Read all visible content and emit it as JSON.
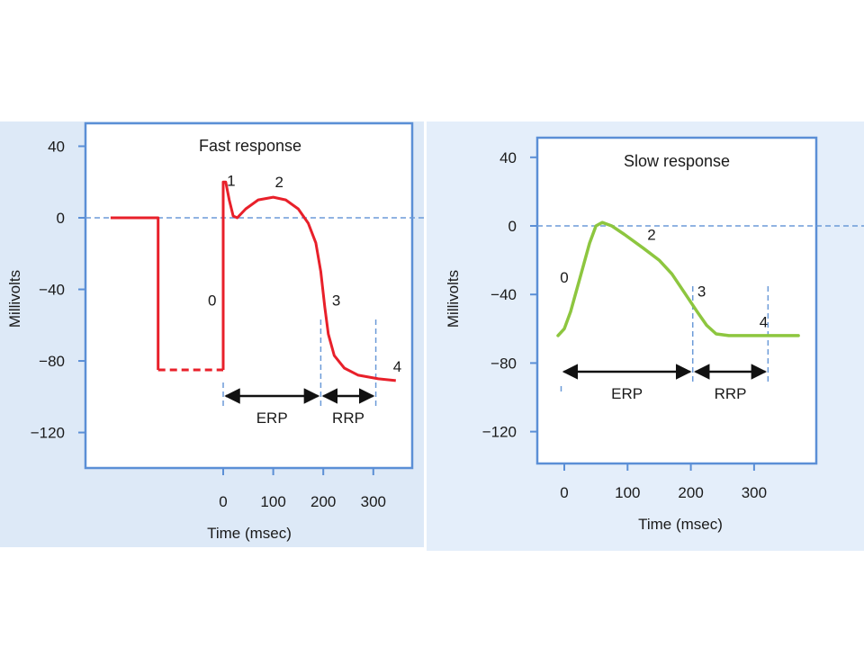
{
  "colors": {
    "fast_curve": "#e8202a",
    "slow_curve": "#8dc63f",
    "frame": "#5b8fd6",
    "guide": "#6b9ad8",
    "arrow": "#111111"
  },
  "chart_data": [
    {
      "type": "line",
      "title": "Fast response",
      "xlabel": "Time (msec)",
      "ylabel": "Millivolts",
      "xlim": [
        -230,
        380
      ],
      "ylim": [
        -140,
        48
      ],
      "x_ticks": [
        "0",
        "100",
        "200",
        "300"
      ],
      "y_ticks": [
        "40",
        "0",
        "−40",
        "−80",
        "−120"
      ],
      "x_tick_values": [
        0,
        100,
        200,
        300
      ],
      "y_tick_values": [
        40,
        0,
        -40,
        -80,
        -120
      ],
      "resting_dashed_y": 0,
      "series": [
        {
          "points": [
            [
              -225,
              0
            ],
            [
              -130,
              0
            ],
            [
              -130,
              -85
            ],
            [
              -130,
              -85
            ]
          ],
          "dashed_segment": [
            [
              -130,
              -85
            ],
            [
              0,
              -85
            ]
          ],
          "upstroke": [
            [
              0,
              -85
            ],
            [
              0,
              20
            ],
            [
              5,
              20
            ],
            [
              12,
              10
            ],
            [
              20,
              1
            ],
            [
              28,
              0
            ],
            [
              45,
              5
            ],
            [
              70,
              10
            ],
            [
              100,
              11.5
            ],
            [
              125,
              10
            ],
            [
              150,
              5
            ],
            [
              170,
              -3
            ],
            [
              185,
              -14
            ],
            [
              195,
              -30
            ],
            [
              203,
              -50
            ],
            [
              210,
              -65
            ],
            [
              222,
              -77
            ],
            [
              242,
              -84
            ],
            [
              270,
              -88
            ],
            [
              310,
              -90
            ],
            [
              345,
              -91
            ]
          ]
        }
      ],
      "phase_labels": [
        {
          "text": "0",
          "x": -22,
          "y": -46
        },
        {
          "text": "1",
          "x": 16,
          "y": 21
        },
        {
          "text": "2",
          "x": 112,
          "y": 20
        },
        {
          "text": "3",
          "x": 226,
          "y": -46
        },
        {
          "text": "4",
          "x": 348,
          "y": -83
        }
      ],
      "intervals": [
        {
          "label": "ERP",
          "start": 0,
          "end": 195
        },
        {
          "label": "RRP",
          "start": 195,
          "end": 305
        }
      ]
    },
    {
      "type": "line",
      "title": "Slow response",
      "xlabel": "Time (msec)",
      "ylabel": "Millivolts",
      "xlim": [
        -40,
        405
      ],
      "ylim": [
        -141,
        48
      ],
      "x_ticks": [
        "0",
        "100",
        "200",
        "300"
      ],
      "y_ticks": [
        "40",
        "0",
        "−40",
        "−80",
        "−120"
      ],
      "x_tick_values": [
        0,
        100,
        200,
        300
      ],
      "y_tick_values": [
        40,
        0,
        -40,
        -80,
        -120
      ],
      "resting_dashed_y": 0,
      "series": [
        {
          "points": [
            [
              -10,
              -64
            ],
            [
              0,
              -60
            ],
            [
              10,
              -50
            ],
            [
              25,
              -30
            ],
            [
              40,
              -10
            ],
            [
              50,
              0
            ],
            [
              60,
              2
            ],
            [
              75,
              0
            ],
            [
              95,
              -5
            ],
            [
              125,
              -13
            ],
            [
              150,
              -20
            ],
            [
              170,
              -28
            ],
            [
              190,
              -39
            ],
            [
              210,
              -50
            ],
            [
              225,
              -58
            ],
            [
              240,
              -63
            ],
            [
              260,
              -64
            ],
            [
              300,
              -64
            ],
            [
              340,
              -64
            ],
            [
              370,
              -64
            ]
          ]
        }
      ],
      "phase_labels": [
        {
          "text": "0",
          "x": 0,
          "y": -30
        },
        {
          "text": "2",
          "x": 138,
          "y": -5
        },
        {
          "text": "3",
          "x": 217,
          "y": -38
        },
        {
          "text": "4",
          "x": 315,
          "y": -56
        }
      ],
      "intervals": [
        {
          "label": "ERP",
          "start": -5,
          "end": 203
        },
        {
          "label": "RRP",
          "start": 203,
          "end": 322
        }
      ]
    }
  ]
}
